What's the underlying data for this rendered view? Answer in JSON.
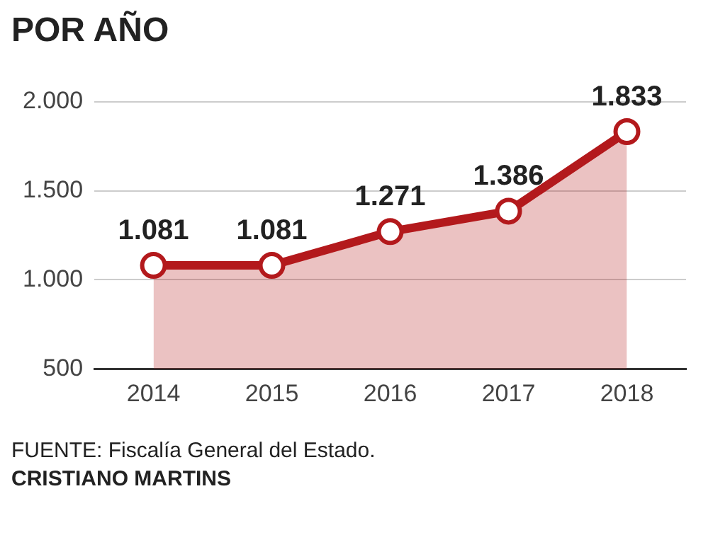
{
  "chart_data": {
    "type": "area",
    "title": "POR AÑO",
    "categories": [
      "2014",
      "2015",
      "2016",
      "2017",
      "2018"
    ],
    "series": [
      {
        "color": "#b3191c",
        "values": [
          1081,
          1081,
          1271,
          1386,
          1833
        ],
        "value_labels": [
          "1.081",
          "1.081",
          "1.271",
          "1.386",
          "1.833"
        ]
      }
    ],
    "ylim": [
      500,
      2000
    ],
    "yticks": [
      {
        "value": 500,
        "label": "500"
      },
      {
        "value": 1000,
        "label": "1.000"
      },
      {
        "value": 1500,
        "label": "1.500"
      },
      {
        "value": 2000,
        "label": "2.000"
      }
    ],
    "grid": "y",
    "marker": "circle",
    "line_style": "solid",
    "annotations": [
      "FUENTE: Fiscalía General del Estado.",
      "CRISTIANO MARTINS"
    ]
  }
}
